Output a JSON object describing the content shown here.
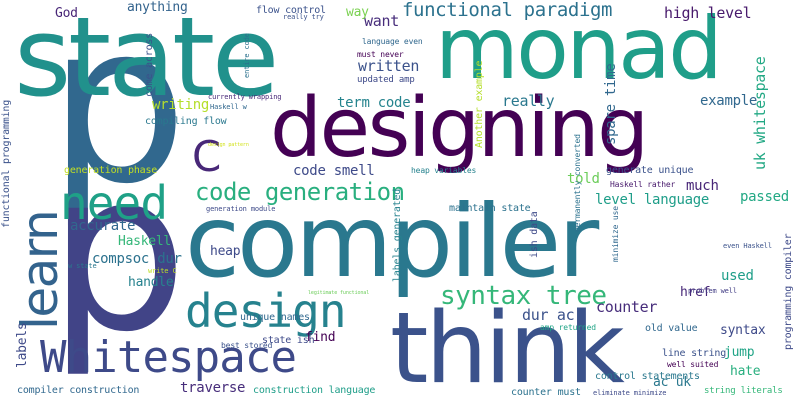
{
  "words": [
    {
      "text": "p",
      "color": "#31688e"
    },
    {
      "text": "state",
      "color": "#21918c"
    },
    {
      "text": "monad",
      "color": "#1f9e89"
    },
    {
      "text": "designing",
      "color": "#440154"
    },
    {
      "text": "compiler",
      "color": "#2a788e"
    },
    {
      "text": "think",
      "color": "#3b528b"
    },
    {
      "text": "p",
      "color": "#414487"
    },
    {
      "text": "Whitespace",
      "color": "#3e4a89"
    },
    {
      "text": "design",
      "color": "#26828e"
    },
    {
      "text": "learn",
      "color": "#33638d"
    },
    {
      "text": "need",
      "color": "#1fa187"
    },
    {
      "text": "code generation",
      "color": "#29af7f"
    },
    {
      "text": "C",
      "color": "#482878"
    },
    {
      "text": "syntax tree",
      "color": "#35b779"
    },
    {
      "text": "functional paradigm",
      "color": "#2c728e"
    },
    {
      "text": "high level",
      "color": "#481a6c"
    },
    {
      "text": "written",
      "color": "#3b528b"
    },
    {
      "text": "want",
      "color": "#472d7b"
    },
    {
      "text": "term code",
      "color": "#25848e"
    },
    {
      "text": "really",
      "color": "#2a788e"
    },
    {
      "text": "example",
      "color": "#31688e"
    },
    {
      "text": "code smell",
      "color": "#3e4a89"
    },
    {
      "text": "much",
      "color": "#482677"
    },
    {
      "text": "told",
      "color": "#6ccd5a"
    },
    {
      "text": "level language",
      "color": "#1f9e89"
    },
    {
      "text": "passed",
      "color": "#22a884"
    },
    {
      "text": "accurate",
      "color": "#31688e"
    },
    {
      "text": "compsoc dur",
      "color": "#2c728e"
    },
    {
      "text": "Haskell",
      "color": "#35b779"
    },
    {
      "text": "heap",
      "color": "#3e4a89"
    },
    {
      "text": "handle",
      "color": "#26828e"
    },
    {
      "text": "dur ac",
      "color": "#3b528b"
    },
    {
      "text": "counter",
      "color": "#472d7b"
    },
    {
      "text": "used",
      "color": "#1f9e89"
    },
    {
      "text": "href",
      "color": "#482878"
    },
    {
      "text": "syntax",
      "color": "#3e4a89"
    },
    {
      "text": "find",
      "color": "#440154"
    },
    {
      "text": "jump",
      "color": "#20a486"
    },
    {
      "text": "hate",
      "color": "#29af7f"
    },
    {
      "text": "ac uk",
      "color": "#2a788e"
    },
    {
      "text": "traverse",
      "color": "#472d7b"
    },
    {
      "text": "writing",
      "color": "#b5de2b"
    },
    {
      "text": "anything",
      "color": "#33638d"
    },
    {
      "text": "God",
      "color": "#482677"
    },
    {
      "text": "way",
      "color": "#7ad151"
    },
    {
      "text": "flow control",
      "color": "#3b528b"
    },
    {
      "text": "compiling flow",
      "color": "#2a788e"
    },
    {
      "text": "updated amp",
      "color": "#3e4a89"
    },
    {
      "text": "must never",
      "color": "#440154"
    },
    {
      "text": "language even",
      "color": "#31688e"
    },
    {
      "text": "really try",
      "color": "#3b528b"
    },
    {
      "text": "currently wrapping",
      "color": "#482878"
    },
    {
      "text": "Haskell w",
      "color": "#31688e"
    },
    {
      "text": "generation phase",
      "color": "#c2df23"
    },
    {
      "text": "generation module",
      "color": "#3e4a89"
    },
    {
      "text": "heap variables",
      "color": "#26828e"
    },
    {
      "text": "maintain state",
      "color": "#2c728e"
    },
    {
      "text": "generate unique",
      "color": "#3b528b"
    },
    {
      "text": "Haskell rather",
      "color": "#481a6c"
    },
    {
      "text": "even Haskell",
      "color": "#3b528b"
    },
    {
      "text": "problem well",
      "color": "#433e85"
    },
    {
      "text": "unique names",
      "color": "#31688e"
    },
    {
      "text": "legitimate functional",
      "color": "#6ccd5a"
    },
    {
      "text": "w state",
      "color": "#2a788e"
    },
    {
      "text": "write C",
      "color": "#bddf26"
    },
    {
      "text": "state ish",
      "color": "#3e4a89"
    },
    {
      "text": "best stored",
      "color": "#3b528b"
    },
    {
      "text": "construction language",
      "color": "#1f9e89"
    },
    {
      "text": "compiler construction",
      "color": "#31688e"
    },
    {
      "text": "counter must",
      "color": "#2c728e"
    },
    {
      "text": "eliminate minimize",
      "color": "#3e4a89"
    },
    {
      "text": "string literals",
      "color": "#35b779"
    },
    {
      "text": "well suited",
      "color": "#440154"
    },
    {
      "text": "line string",
      "color": "#3b528b"
    },
    {
      "text": "control statements",
      "color": "#2a788e"
    },
    {
      "text": "amp returned",
      "color": "#20a486"
    },
    {
      "text": "old value",
      "color": "#31688e"
    },
    {
      "text": "design pattern",
      "color": "#d2e21b"
    },
    {
      "text": "functional programming",
      "color": "#3b528b"
    },
    {
      "text": "labels",
      "color": "#3e4a89"
    },
    {
      "text": "spare time",
      "color": "#31688e"
    },
    {
      "text": "uk whitespace",
      "color": "#22a884"
    },
    {
      "text": "entire code",
      "color": "#2c728e"
    },
    {
      "text": "come across",
      "color": "#3b528b"
    },
    {
      "text": "Another example",
      "color": "#b5de2b"
    },
    {
      "text": "permanently converted",
      "color": "#2c728e"
    },
    {
      "text": "ish data",
      "color": "#3e4a89"
    },
    {
      "text": "labels generated",
      "color": "#26828e"
    },
    {
      "text": "minimize use",
      "color": "#31688e"
    },
    {
      "text": "programming compiler",
      "color": "#3e4a89"
    }
  ]
}
